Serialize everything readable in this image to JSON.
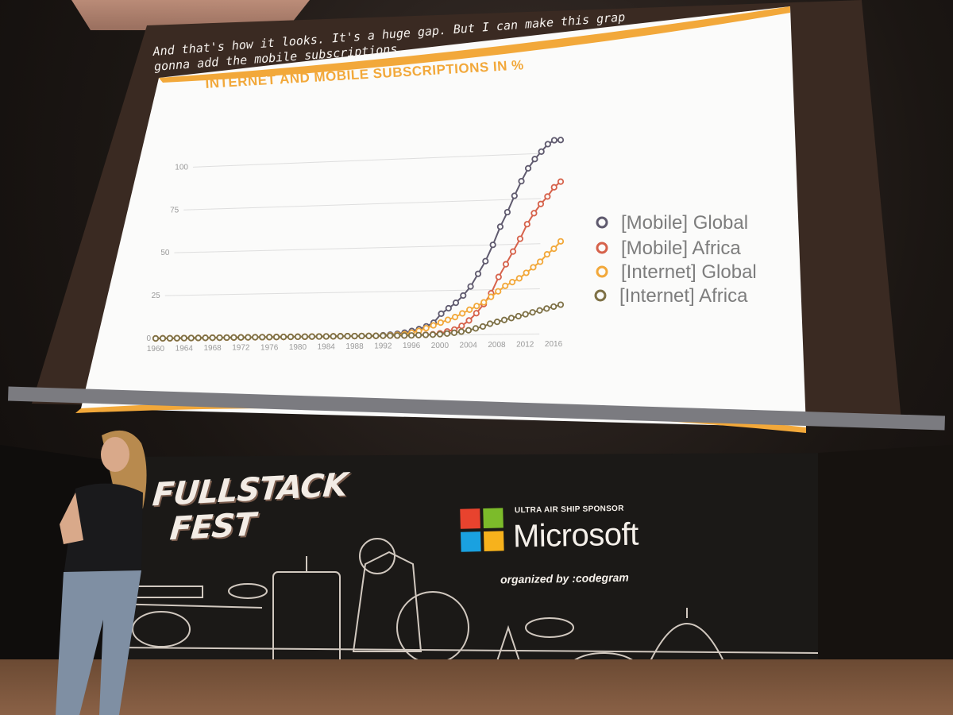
{
  "slide": {
    "caption": "And that's how it looks. It's a huge gap. But I can make this grap\ngonna add the mobile subscriptions.",
    "title": "INTERNET AND MOBILE SUBSCRIPTIONS IN %"
  },
  "colors": {
    "accent": "#f2a83a",
    "mobile_global": "#5f5a6e",
    "mobile_africa": "#d6624b",
    "internet_global": "#f2a83a",
    "internet_africa": "#7e7146"
  },
  "chart_data": {
    "type": "line",
    "title": "INTERNET AND MOBILE SUBSCRIPTIONS IN %",
    "y_ticks": [
      "0",
      "25",
      "50",
      "75",
      "100"
    ],
    "x_ticks": [
      "1960",
      "1964",
      "1968",
      "1972",
      "1976",
      "1980",
      "1984",
      "1988",
      "1992",
      "1996",
      "2000",
      "2004",
      "2008",
      "2012",
      "2016"
    ],
    "ylim": [
      0,
      115
    ],
    "xlim": [
      1960,
      2017
    ],
    "grid": true,
    "legend_position": "right",
    "x": [
      1960,
      1961,
      1962,
      1963,
      1964,
      1965,
      1966,
      1967,
      1968,
      1969,
      1970,
      1971,
      1972,
      1973,
      1974,
      1975,
      1976,
      1977,
      1978,
      1979,
      1980,
      1981,
      1982,
      1983,
      1984,
      1985,
      1986,
      1987,
      1988,
      1989,
      1990,
      1991,
      1992,
      1993,
      1994,
      1995,
      1996,
      1997,
      1998,
      1999,
      2000,
      2001,
      2002,
      2003,
      2004,
      2005,
      2006,
      2007,
      2008,
      2009,
      2010,
      2011,
      2012,
      2013,
      2014,
      2015,
      2016,
      2017
    ],
    "series": [
      {
        "name": "[Mobile] Global",
        "values": [
          0,
          0,
          0,
          0,
          0,
          0,
          0,
          0,
          0,
          0,
          0,
          0,
          0,
          0,
          0,
          0,
          0,
          0,
          0,
          0,
          0,
          0,
          0,
          0,
          0,
          0,
          0,
          0,
          0,
          0,
          0,
          0,
          0.3,
          0.6,
          1,
          1.6,
          2.5,
          3.5,
          5,
          7,
          12,
          15,
          18,
          22,
          27,
          34,
          41,
          50,
          60,
          68,
          77,
          85,
          92,
          97,
          101,
          105,
          107,
          107
        ]
      },
      {
        "name": "[Mobile] Africa",
        "values": [
          0,
          0,
          0,
          0,
          0,
          0,
          0,
          0,
          0,
          0,
          0,
          0,
          0,
          0,
          0,
          0,
          0,
          0,
          0,
          0,
          0,
          0,
          0,
          0,
          0,
          0,
          0,
          0,
          0,
          0,
          0,
          0,
          0,
          0,
          0,
          0,
          0.1,
          0.2,
          0.3,
          0.5,
          1,
          2,
          3,
          5,
          8,
          12,
          17,
          23,
          32,
          39,
          46,
          53,
          61,
          67,
          72,
          76,
          81,
          84
        ]
      },
      {
        "name": "[Internet] Global",
        "values": [
          0,
          0,
          0,
          0,
          0,
          0,
          0,
          0,
          0,
          0,
          0,
          0,
          0,
          0,
          0,
          0,
          0,
          0,
          0,
          0,
          0,
          0,
          0,
          0,
          0,
          0,
          0,
          0,
          0,
          0,
          0,
          0,
          0,
          0.2,
          0.4,
          0.7,
          1.5,
          2.5,
          4,
          5.5,
          7,
          8.5,
          10,
          12,
          14,
          16,
          18,
          21,
          24,
          27,
          29,
          31,
          34,
          37,
          40,
          44,
          47,
          51
        ]
      },
      {
        "name": "[Internet] Africa",
        "values": [
          0,
          0,
          0,
          0,
          0,
          0,
          0,
          0,
          0,
          0,
          0,
          0,
          0,
          0,
          0,
          0,
          0,
          0,
          0,
          0,
          0,
          0,
          0,
          0,
          0,
          0,
          0,
          0,
          0,
          0,
          0,
          0,
          0,
          0,
          0,
          0,
          0,
          0.1,
          0.2,
          0.3,
          0.5,
          0.8,
          1.2,
          1.8,
          2.5,
          3.5,
          4.5,
          6,
          7,
          8,
          9,
          10,
          11,
          12,
          13,
          14,
          15,
          16
        ]
      }
    ]
  },
  "banner": {
    "logo_line1": "FULLSTACK",
    "logo_line2": "FEST",
    "sponsor_label": "ULTRA AIR SHIP SPONSOR",
    "sponsor_name": "Microsoft",
    "organized_by": "organized by :codegram"
  }
}
